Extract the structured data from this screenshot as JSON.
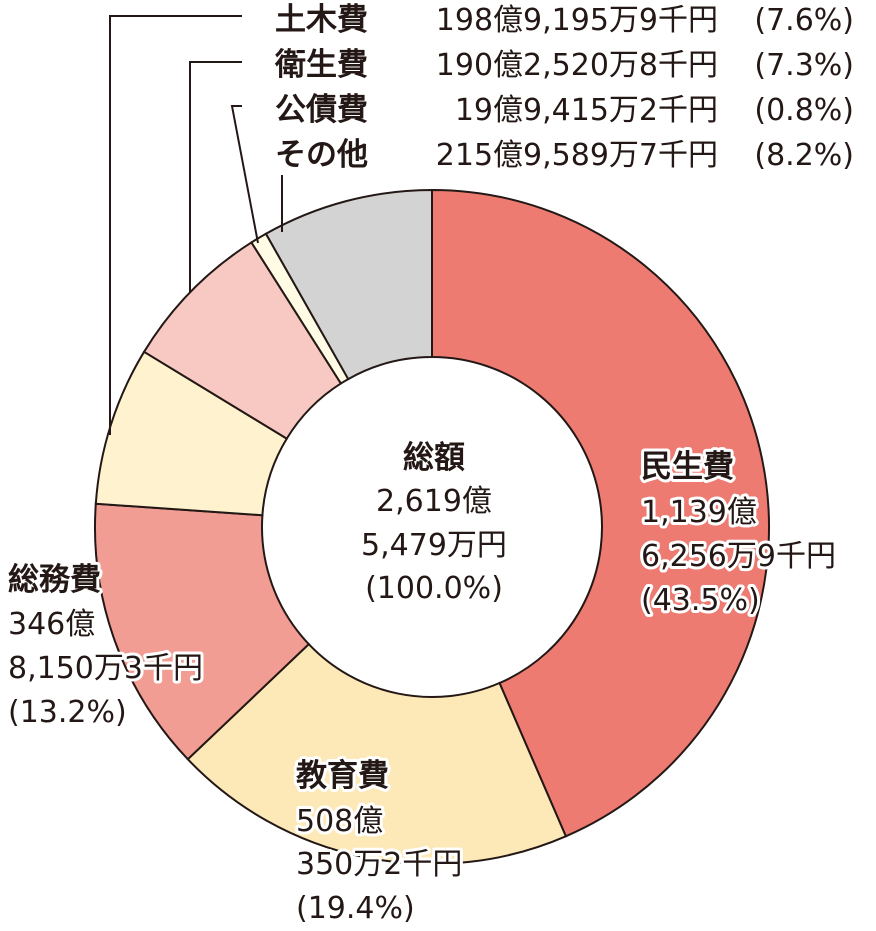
{
  "chart_data": {
    "type": "pie",
    "style": "donut",
    "center": {
      "title": "総額",
      "line1": "2,619億",
      "line2": "5,479万円",
      "line3": "(100.0%)"
    },
    "slices": [
      {
        "key": "minsei",
        "name": "民生費",
        "amount_line1": "1,139億",
        "amount_line2": "6,256万9千円",
        "percent_text": "(43.5%)",
        "percent": 43.5,
        "color": "#ed7b72"
      },
      {
        "key": "kyoiku",
        "name": "教育費",
        "amount_line1": "508億",
        "amount_line2": "350万2千円",
        "percent_text": "(19.4%)",
        "percent": 19.4,
        "color": "#fde9b7"
      },
      {
        "key": "somu",
        "name": "総務費",
        "amount_line1": "346億",
        "amount_line2": "8,150万3千円",
        "percent_text": "(13.2%)",
        "percent": 13.2,
        "color": "#f29d93"
      },
      {
        "key": "doboku",
        "name": "土木費",
        "amount": "198億9,195万9千円",
        "percent_text": "(7.6%)",
        "percent": 7.6,
        "color": "#fef2cf"
      },
      {
        "key": "eisei",
        "name": "衛生費",
        "amount": "190億2,520万8千円",
        "percent_text": "(7.3%)",
        "percent": 7.3,
        "color": "#f7c9c2"
      },
      {
        "key": "kosai",
        "name": "公債費",
        "amount": "19億9,415万2千円",
        "percent_text": "(0.8%)",
        "percent": 0.8,
        "color": "#fffbe5"
      },
      {
        "key": "sonota",
        "name": "その他",
        "amount": "215億9,589万7千円",
        "percent_text": "(8.2%)",
        "percent": 8.2,
        "color": "#d3d3d4"
      }
    ]
  }
}
